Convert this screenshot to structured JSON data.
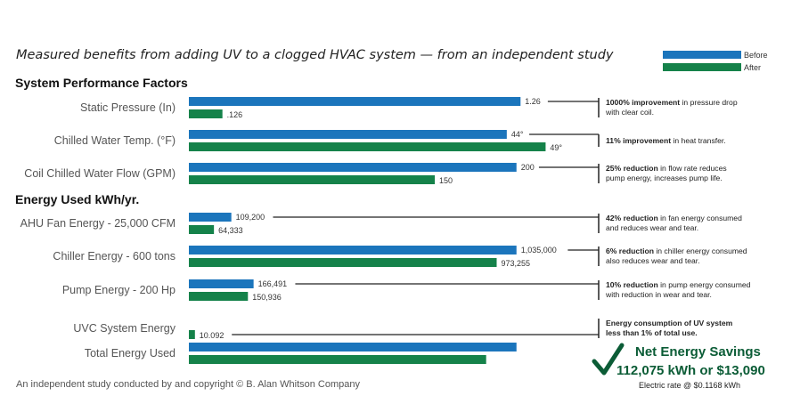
{
  "chart_data": {
    "type": "bar",
    "title": "Measured benefits from adding UV to a clogged HVAC system — from an independent study",
    "legend": {
      "placement": "top-right",
      "entries": [
        "Before",
        "After"
      ]
    },
    "colors": {
      "before": "#1b75bc",
      "after": "#15824a",
      "leader": "#222222",
      "savings": "#0b5c36"
    },
    "groups": [
      {
        "heading": "System Performance Factors",
        "rows": [
          {
            "label": "Static Pressure (In)",
            "before": 1.26,
            "after": 0.126,
            "before_label": "1.26",
            "after_label": ".126",
            "bar_fraction_before": 0.82,
            "bar_fraction_after": 0.083,
            "note_bold": "1000% improvement",
            "note_text": " in pressure drop",
            "note_line2": "with clear coil."
          },
          {
            "label": "Chilled Water Temp. (°F)",
            "before": 44,
            "after": 49,
            "before_label": "44°",
            "after_label": "49°",
            "bar_fraction_before": 0.786,
            "bar_fraction_after": 0.882,
            "note_bold": "11% improvement",
            "note_text": " in heat transfer.",
            "note_line2": ""
          },
          {
            "label": "Coil Chilled Water Flow (GPM)",
            "before": 200,
            "after": 150,
            "before_label": "200",
            "after_label": "150",
            "bar_fraction_before": 0.81,
            "bar_fraction_after": 0.608,
            "note_bold": "25% reduction",
            "note_text": " in flow rate reduces",
            "note_line2": "pump energy, increases pump life."
          }
        ]
      },
      {
        "heading": "Energy Used kWh/yr.",
        "rows": [
          {
            "label": "AHU Fan Energy - 25,000 CFM",
            "before": 109200,
            "after": 64333,
            "before_label": "109,200",
            "after_label": "64,333",
            "bar_fraction_before": 0.105,
            "bar_fraction_after": 0.062,
            "note_bold": "42% reduction",
            "note_text": " in fan energy consumed",
            "note_line2": "and reduces wear and tear."
          },
          {
            "label": "Chiller Energy - 600 tons",
            "before": 1035000,
            "after": 973255,
            "before_label": "1,035,000",
            "after_label": "973,255",
            "bar_fraction_before": 0.81,
            "bar_fraction_after": 0.761,
            "note_bold": "6% reduction",
            "note_text": " in chiller energy consumed",
            "note_line2": "also reduces wear and tear."
          },
          {
            "label": "Pump Energy - 200 Hp",
            "before": 166491,
            "after": 150936,
            "before_label": "166,491",
            "after_label": "150,936",
            "bar_fraction_before": 0.16,
            "bar_fraction_after": 0.146,
            "note_bold": "10% reduction",
            "note_text": " in pump energy consumed",
            "note_line2": "with reduction in wear and tear."
          },
          {
            "label": "UVC System Energy",
            "before": null,
            "after": 10.092,
            "before_label": "",
            "after_label": "10.092",
            "bar_fraction_before": 0,
            "bar_fraction_after": 0.015,
            "note_bold": "Energy consumption of UV system",
            "note_text": "",
            "note_line2": "less than 1% of total use.",
            "note_line2_bold": true
          },
          {
            "label": "Total Energy Used",
            "before": null,
            "after": null,
            "before_label": "",
            "after_label": "",
            "bar_fraction_before": 0.81,
            "bar_fraction_after": 0.735,
            "note_bold": "",
            "note_text": "",
            "note_line2": ""
          }
        ]
      }
    ]
  },
  "savings": {
    "title": "Net Energy Savings",
    "value": "112,075 kWh or $13,090",
    "rate": "Electric rate @ $0.1168 kWh",
    "check_icon": "checkmark-icon"
  },
  "footer": "An independent study conducted by and copyright © B. Alan Whitson Company"
}
